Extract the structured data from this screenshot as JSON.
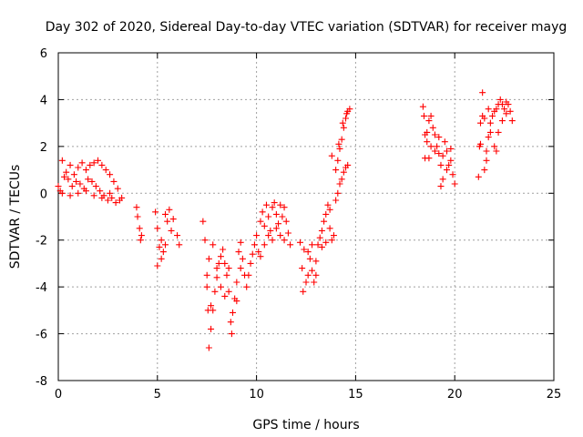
{
  "chart_data": {
    "type": "scatter",
    "title": "Day 302 of 2020, Sidereal Day-to-day VTEC variation (SDTVAR) for receiver mayg",
    "xlabel": "GPS time / hours",
    "ylabel": "SDTVAR / TECUs",
    "xlim": [
      0,
      25
    ],
    "ylim": [
      -8,
      6
    ],
    "xticks": [
      0,
      5,
      10,
      15,
      20,
      25
    ],
    "yticks": [
      -8,
      -6,
      -4,
      -2,
      0,
      2,
      4,
      6
    ],
    "grid": true,
    "marker": "+",
    "marker_color": "#ff0000",
    "series": [
      {
        "points": [
          [
            0.0,
            0.3
          ],
          [
            0.2,
            1.4
          ],
          [
            0.4,
            0.9
          ],
          [
            0.6,
            1.2
          ],
          [
            0.8,
            0.8
          ],
          [
            1.0,
            1.1
          ],
          [
            1.2,
            1.3
          ],
          [
            1.4,
            1.0
          ],
          [
            1.6,
            1.2
          ],
          [
            1.8,
            1.3
          ],
          [
            2.0,
            1.4
          ],
          [
            2.2,
            1.2
          ],
          [
            2.4,
            1.0
          ],
          [
            2.6,
            0.8
          ],
          [
            2.8,
            0.5
          ],
          [
            3.0,
            0.2
          ],
          [
            3.2,
            -0.2
          ],
          [
            0.1,
            0.1
          ],
          [
            0.3,
            0.7
          ],
          [
            0.5,
            0.6
          ],
          [
            0.7,
            0.3
          ],
          [
            0.9,
            0.5
          ],
          [
            1.1,
            0.4
          ],
          [
            1.3,
            0.2
          ],
          [
            1.5,
            0.6
          ],
          [
            1.7,
            0.5
          ],
          [
            1.9,
            0.3
          ],
          [
            2.1,
            0.1
          ],
          [
            2.3,
            -0.1
          ],
          [
            2.5,
            -0.3
          ],
          [
            2.7,
            -0.2
          ],
          [
            2.9,
            -0.4
          ],
          [
            3.1,
            -0.3
          ],
          [
            0.2,
            0.0
          ],
          [
            0.6,
            -0.1
          ],
          [
            1.0,
            0.0
          ],
          [
            1.4,
            0.1
          ],
          [
            1.8,
            -0.1
          ],
          [
            2.2,
            -0.2
          ],
          [
            2.6,
            0.0
          ],
          [
            3.95,
            -0.6
          ],
          [
            4.0,
            -1.0
          ],
          [
            4.1,
            -1.5
          ],
          [
            4.15,
            -2.0
          ],
          [
            4.2,
            -1.8
          ],
          [
            4.9,
            -0.8
          ],
          [
            5.0,
            -1.5
          ],
          [
            5.1,
            -2.3
          ],
          [
            5.2,
            -2.8
          ],
          [
            5.3,
            -2.5
          ],
          [
            5.4,
            -2.2
          ],
          [
            5.5,
            -1.2
          ],
          [
            5.6,
            -0.7
          ],
          [
            5.8,
            -1.1
          ],
          [
            6.0,
            -1.8
          ],
          [
            6.1,
            -2.2
          ],
          [
            5.0,
            -3.1
          ],
          [
            5.2,
            -2.0
          ],
          [
            5.4,
            -0.9
          ],
          [
            5.7,
            -1.6
          ],
          [
            7.3,
            -1.2
          ],
          [
            7.4,
            -2.0
          ],
          [
            7.5,
            -3.5
          ],
          [
            7.55,
            -5.0
          ],
          [
            7.6,
            -6.6
          ],
          [
            7.7,
            -5.8
          ],
          [
            7.8,
            -5.0
          ],
          [
            7.9,
            -4.2
          ],
          [
            8.0,
            -3.6
          ],
          [
            8.1,
            -3.0
          ],
          [
            8.2,
            -2.7
          ],
          [
            8.3,
            -2.4
          ],
          [
            8.4,
            -3.0
          ],
          [
            8.5,
            -3.5
          ],
          [
            8.6,
            -4.2
          ],
          [
            8.7,
            -5.5
          ],
          [
            8.75,
            -6.0
          ],
          [
            8.8,
            -5.1
          ],
          [
            8.9,
            -4.5
          ],
          [
            9.0,
            -3.8
          ],
          [
            9.1,
            -2.5
          ],
          [
            9.2,
            -2.1
          ],
          [
            9.3,
            -2.8
          ],
          [
            9.4,
            -3.5
          ],
          [
            9.5,
            -4.0
          ],
          [
            9.6,
            -3.5
          ],
          [
            9.7,
            -3.0
          ],
          [
            9.8,
            -2.6
          ],
          [
            7.6,
            -2.8
          ],
          [
            7.8,
            -2.2
          ],
          [
            8.0,
            -3.2
          ],
          [
            8.2,
            -4.0
          ],
          [
            8.4,
            -4.4
          ],
          [
            7.5,
            -4.0
          ],
          [
            7.7,
            -4.8
          ],
          [
            8.6,
            -3.2
          ],
          [
            9.0,
            -4.6
          ],
          [
            9.2,
            -3.2
          ],
          [
            9.9,
            -2.2
          ],
          [
            10.0,
            -1.8
          ],
          [
            10.1,
            -2.5
          ],
          [
            10.2,
            -1.2
          ],
          [
            10.3,
            -0.8
          ],
          [
            10.4,
            -1.4
          ],
          [
            10.5,
            -0.5
          ],
          [
            10.6,
            -1.0
          ],
          [
            10.7,
            -1.6
          ],
          [
            10.8,
            -0.6
          ],
          [
            10.9,
            -0.4
          ],
          [
            11.0,
            -0.9
          ],
          [
            11.1,
            -1.3
          ],
          [
            11.2,
            -1.8
          ],
          [
            11.3,
            -1.0
          ],
          [
            11.4,
            -0.6
          ],
          [
            11.5,
            -1.2
          ],
          [
            11.6,
            -1.7
          ],
          [
            11.7,
            -2.2
          ],
          [
            10.2,
            -2.7
          ],
          [
            10.4,
            -2.2
          ],
          [
            10.6,
            -1.8
          ],
          [
            10.8,
            -2.0
          ],
          [
            11.0,
            -1.5
          ],
          [
            11.2,
            -0.5
          ],
          [
            11.4,
            -2.0
          ],
          [
            12.2,
            -2.1
          ],
          [
            12.3,
            -3.2
          ],
          [
            12.35,
            -4.2
          ],
          [
            12.5,
            -3.8
          ],
          [
            12.6,
            -2.5
          ],
          [
            12.7,
            -2.8
          ],
          [
            12.8,
            -3.3
          ],
          [
            12.9,
            -3.8
          ],
          [
            13.0,
            -3.5
          ],
          [
            13.1,
            -2.2
          ],
          [
            13.2,
            -1.9
          ],
          [
            12.4,
            -2.4
          ],
          [
            12.6,
            -3.5
          ],
          [
            12.8,
            -2.2
          ],
          [
            13.0,
            -2.9
          ],
          [
            13.3,
            -1.6
          ],
          [
            13.4,
            -1.2
          ],
          [
            13.5,
            -0.9
          ],
          [
            13.6,
            -0.5
          ],
          [
            13.7,
            -1.5
          ],
          [
            13.8,
            -2.0
          ],
          [
            13.9,
            -1.8
          ],
          [
            13.3,
            -2.3
          ],
          [
            13.5,
            -2.1
          ],
          [
            13.7,
            -0.7
          ],
          [
            14.0,
            -0.3
          ],
          [
            14.1,
            0.0
          ],
          [
            14.2,
            0.4
          ],
          [
            14.3,
            0.6
          ],
          [
            14.4,
            0.9
          ],
          [
            14.5,
            1.1
          ],
          [
            14.6,
            1.2
          ],
          [
            14.0,
            1.0
          ],
          [
            14.1,
            1.4
          ],
          [
            14.2,
            1.9
          ],
          [
            14.3,
            2.3
          ],
          [
            14.4,
            2.8
          ],
          [
            14.5,
            3.2
          ],
          [
            14.6,
            3.5
          ],
          [
            14.7,
            3.6
          ],
          [
            13.8,
            1.6
          ],
          [
            14.15,
            2.1
          ],
          [
            14.35,
            3.0
          ],
          [
            14.55,
            3.4
          ],
          [
            18.4,
            3.7
          ],
          [
            18.45,
            3.3
          ],
          [
            18.5,
            2.5
          ],
          [
            18.6,
            2.2
          ],
          [
            18.7,
            1.5
          ],
          [
            18.8,
            2.0
          ],
          [
            18.9,
            2.8
          ],
          [
            19.0,
            2.5
          ],
          [
            19.1,
            2.0
          ],
          [
            19.2,
            1.7
          ],
          [
            19.3,
            1.2
          ],
          [
            19.4,
            1.6
          ],
          [
            19.5,
            2.2
          ],
          [
            19.6,
            1.8
          ],
          [
            19.7,
            1.2
          ],
          [
            19.8,
            1.4
          ],
          [
            19.9,
            0.8
          ],
          [
            20.0,
            0.4
          ],
          [
            18.5,
            1.5
          ],
          [
            18.6,
            2.6
          ],
          [
            18.7,
            3.1
          ],
          [
            18.8,
            3.3
          ],
          [
            19.0,
            1.8
          ],
          [
            19.2,
            2.4
          ],
          [
            19.4,
            0.6
          ],
          [
            19.3,
            0.3
          ],
          [
            19.6,
            1.0
          ],
          [
            19.8,
            1.9
          ],
          [
            21.2,
            0.7
          ],
          [
            21.25,
            2.0
          ],
          [
            21.3,
            3.0
          ],
          [
            21.4,
            4.3
          ],
          [
            21.5,
            3.2
          ],
          [
            21.6,
            1.8
          ],
          [
            21.7,
            2.4
          ],
          [
            21.8,
            3.0
          ],
          [
            21.9,
            3.3
          ],
          [
            22.0,
            3.5
          ],
          [
            22.1,
            3.6
          ],
          [
            22.2,
            3.8
          ],
          [
            22.3,
            4.0
          ],
          [
            22.4,
            3.8
          ],
          [
            22.5,
            3.6
          ],
          [
            22.6,
            3.4
          ],
          [
            22.7,
            3.8
          ],
          [
            22.8,
            3.5
          ],
          [
            22.9,
            3.1
          ],
          [
            21.5,
            1.0
          ],
          [
            21.6,
            1.4
          ],
          [
            21.8,
            2.6
          ],
          [
            22.0,
            2.0
          ],
          [
            22.1,
            1.8
          ],
          [
            22.2,
            2.6
          ],
          [
            22.4,
            3.1
          ],
          [
            21.3,
            2.1
          ],
          [
            21.7,
            3.6
          ],
          [
            21.4,
            3.3
          ],
          [
            22.6,
            3.9
          ]
        ]
      }
    ]
  }
}
